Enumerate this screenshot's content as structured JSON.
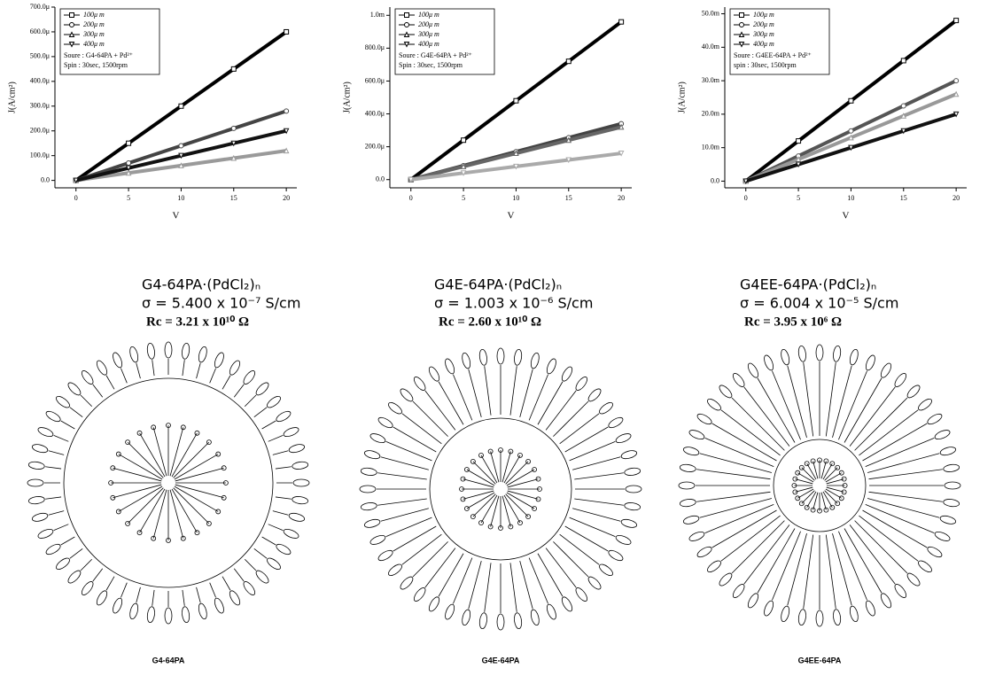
{
  "chart_data": [
    {
      "type": "line",
      "x_label": "V",
      "y_label": "J(A/cm²)",
      "x": [
        0,
        5,
        10,
        15,
        20
      ],
      "xlim": [
        -2,
        21
      ],
      "xticks": [
        0,
        5,
        10,
        15,
        20
      ],
      "ylim": [
        -3e-05,
        0.0007
      ],
      "yticks": [
        {
          "value": 0,
          "label": "0.0"
        },
        {
          "value": 0.0001,
          "label": "100.0μ"
        },
        {
          "value": 0.0002,
          "label": "200.0μ"
        },
        {
          "value": 0.0003,
          "label": "300.0μ"
        },
        {
          "value": 0.0004,
          "label": "400.0μ"
        },
        {
          "value": 0.0005,
          "label": "500.0μ"
        },
        {
          "value": 0.0006,
          "label": "600.0μ"
        },
        {
          "value": 0.0007,
          "label": "700.0μ"
        }
      ],
      "series": [
        {
          "name": "100μ m",
          "color": "#000000",
          "marker": "square",
          "values": [
            0,
            0.00015,
            0.0003,
            0.00045,
            0.0006
          ]
        },
        {
          "name": "200μ m",
          "color": "#444444",
          "marker": "circle",
          "values": [
            0,
            7e-05,
            0.00014,
            0.00021,
            0.00028
          ]
        },
        {
          "name": "300μ m",
          "color": "#9a9a9a",
          "marker": "triangle-up",
          "values": [
            0,
            3e-05,
            6e-05,
            9e-05,
            0.00012
          ]
        },
        {
          "name": "400μ m",
          "color": "#111111",
          "marker": "triangle-down",
          "values": [
            0,
            5e-05,
            0.0001,
            0.00015,
            0.0002
          ]
        }
      ],
      "annotations": [
        "Soure : G4-64PA + Pd²⁺",
        "Spin : 30sec, 1500rpm"
      ]
    },
    {
      "type": "line",
      "x_label": "V",
      "y_label": "J(A/cm²)",
      "x": [
        0,
        5,
        10,
        15,
        20
      ],
      "xlim": [
        -2,
        21
      ],
      "xticks": [
        0,
        5,
        10,
        15,
        20
      ],
      "ylim": [
        -5e-05,
        0.00105
      ],
      "yticks": [
        {
          "value": 0,
          "label": "0.0"
        },
        {
          "value": 0.0002,
          "label": "200.0μ"
        },
        {
          "value": 0.0004,
          "label": "400.0μ"
        },
        {
          "value": 0.0006,
          "label": "600.0μ"
        },
        {
          "value": 0.0008,
          "label": "800.0μ"
        },
        {
          "value": 0.001,
          "label": "1.0m"
        }
      ],
      "series": [
        {
          "name": "100μ m",
          "color": "#000000",
          "marker": "square",
          "values": [
            0,
            0.00024,
            0.00048,
            0.00072,
            0.00096
          ]
        },
        {
          "name": "200μ m",
          "color": "#444444",
          "marker": "circle",
          "values": [
            0,
            8.5e-05,
            0.00017,
            0.000255,
            0.00034
          ]
        },
        {
          "name": "300μ m",
          "color": "#666666",
          "marker": "triangle-up",
          "values": [
            0,
            8e-05,
            0.00016,
            0.00024,
            0.00032
          ]
        },
        {
          "name": "400μ m",
          "color": "#aaaaaa",
          "marker": "triangle-down",
          "values": [
            0,
            4e-05,
            8e-05,
            0.00012,
            0.00016
          ]
        }
      ],
      "annotations": [
        "Soure : G4E-64PA + Pd²⁺",
        "Spin : 30sec, 1500rpm"
      ]
    },
    {
      "type": "line",
      "x_label": "V",
      "y_label": "J(A/cm²)",
      "x": [
        0,
        5,
        10,
        15,
        20
      ],
      "xlim": [
        -2,
        21
      ],
      "xticks": [
        0,
        5,
        10,
        15,
        20
      ],
      "ylim": [
        -0.002,
        0.052
      ],
      "yticks": [
        {
          "value": 0,
          "label": "0.0"
        },
        {
          "value": 0.01,
          "label": "10.0m"
        },
        {
          "value": 0.02,
          "label": "20.0m"
        },
        {
          "value": 0.03,
          "label": "30.0m"
        },
        {
          "value": 0.04,
          "label": "40.0m"
        },
        {
          "value": 0.05,
          "label": "50.0m"
        }
      ],
      "series": [
        {
          "name": "100μ m",
          "color": "#000000",
          "marker": "square",
          "values": [
            0,
            0.012,
            0.024,
            0.036,
            0.048
          ]
        },
        {
          "name": "200μ m",
          "color": "#555555",
          "marker": "circle",
          "values": [
            0,
            0.0075,
            0.015,
            0.0225,
            0.03
          ]
        },
        {
          "name": "300μ m",
          "color": "#999999",
          "marker": "triangle-up",
          "values": [
            0,
            0.0065,
            0.013,
            0.0195,
            0.026
          ]
        },
        {
          "name": "400μ m",
          "color": "#111111",
          "marker": "triangle-down",
          "values": [
            0,
            0.005,
            0.01,
            0.015,
            0.02
          ]
        }
      ],
      "annotations": [
        "Soure : G4EE-64PA + Pd²⁺",
        "spin : 30sec, 1500rpm"
      ]
    }
  ],
  "panels": [
    {
      "formula": "G4-64PA·(PdCl₂)ₙ",
      "conductivity": "σ = 5.400 x 10⁻⁷ S/cm",
      "resistance": "Rc = 3.21 x 10¹⁰ Ω",
      "molecule_label": "G4-64PA"
    },
    {
      "formula": "G4E-64PA·(PdCl₂)ₙ",
      "conductivity": "σ = 1.003 x 10⁻⁶ S/cm",
      "resistance": "Rc = 2.60 x 10¹⁰ Ω",
      "molecule_label": "G4E-64PA"
    },
    {
      "formula": "G4EE-64PA·(PdCl₂)ₙ",
      "conductivity": "σ = 6.004 x 10⁻⁵ S/cm",
      "resistance": "Rc = 3.95 x 10⁶ Ω",
      "molecule_label": "G4EE-64PA"
    }
  ]
}
